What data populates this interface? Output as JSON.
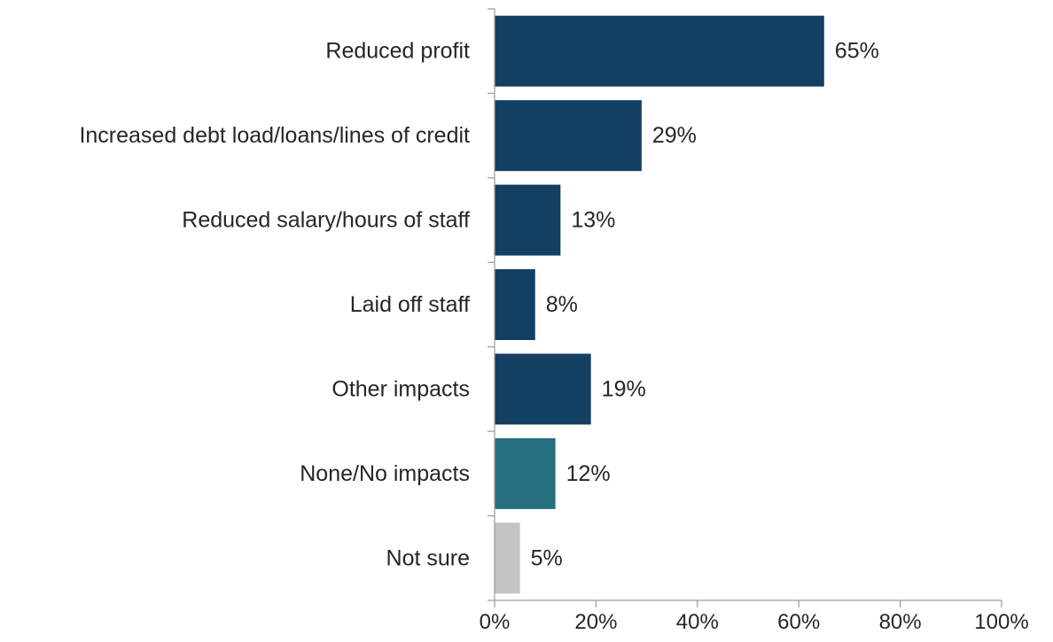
{
  "chart_data": {
    "type": "bar",
    "orientation": "horizontal",
    "categories": [
      "Reduced profit",
      "Increased debt load/loans/lines of credit",
      "Reduced salary/hours of staff",
      "Laid off staff",
      "Other impacts",
      "None/No impacts",
      "Not sure"
    ],
    "values": [
      65,
      29,
      13,
      8,
      19,
      12,
      5
    ],
    "data_labels": [
      "65%",
      "29%",
      "13%",
      "8%",
      "19%",
      "12%",
      "5%"
    ],
    "bar_colors": [
      "#133f63",
      "#133f63",
      "#133f63",
      "#133f63",
      "#133f63",
      "#26707f",
      "#c3c3c3"
    ],
    "xlim": [
      0,
      100
    ],
    "x_ticks": [
      0,
      20,
      40,
      60,
      80,
      100
    ],
    "x_tick_labels": [
      "0%",
      "20%",
      "40%",
      "60%",
      "80%",
      "100%"
    ],
    "title": "",
    "xlabel": "",
    "ylabel": "",
    "grid": false,
    "legend": "none"
  }
}
